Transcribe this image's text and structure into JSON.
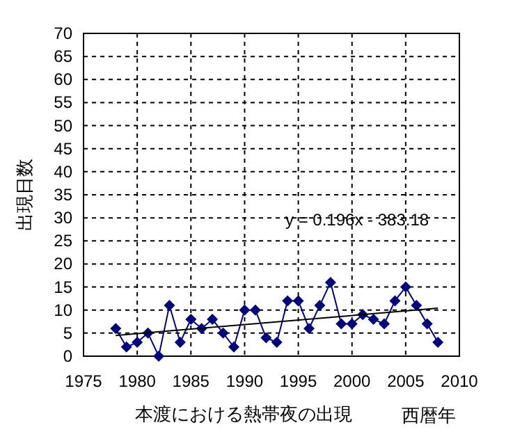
{
  "chart_data": {
    "type": "line",
    "xlabel": "西暦年",
    "ylabel": "出現日数",
    "annotations": [
      "本渡における熱帯夜の出現",
      "y = 0.196x - 383.18"
    ],
    "x": [
      1978,
      1979,
      1980,
      1981,
      1982,
      1983,
      1984,
      1985,
      1986,
      1987,
      1988,
      1989,
      1990,
      1991,
      1992,
      1993,
      1994,
      1995,
      1996,
      1997,
      1998,
      1999,
      2000,
      2001,
      2002,
      2003,
      2004,
      2005,
      2006,
      2007,
      2008
    ],
    "series": [
      {
        "color": "#000080",
        "marker": "diamond",
        "values": [
          6,
          2,
          3,
          5,
          0,
          11,
          3,
          8,
          6,
          8,
          5,
          2,
          10,
          10,
          4,
          3,
          12,
          12,
          6,
          11,
          16,
          7,
          7,
          9,
          8,
          7,
          12,
          15,
          11,
          7,
          3
        ]
      },
      {
        "type": "line",
        "x": [
          1978,
          2008
        ],
        "color": "#000000",
        "marker": "none",
        "values": [
          4.5,
          10.4
        ]
      }
    ],
    "xlim": [
      1975,
      2010
    ],
    "xticks": [
      1975,
      1980,
      1985,
      1990,
      1995,
      2000,
      2005,
      2010
    ],
    "ylim": [
      0,
      70
    ],
    "yticks": [
      0,
      5,
      10,
      15,
      20,
      25,
      30,
      35,
      40,
      45,
      50,
      55,
      60,
      65,
      70
    ],
    "grid": true
  }
}
